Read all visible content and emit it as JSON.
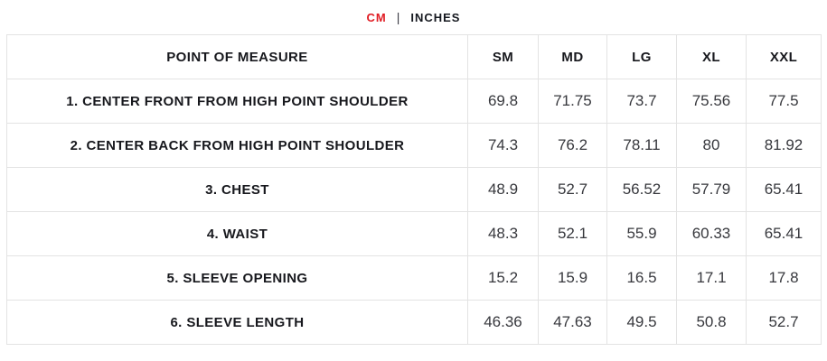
{
  "unit_toggle": {
    "cm_label": "CM",
    "separator": "|",
    "inches_label": "INCHES",
    "active_unit": "CM",
    "active_color": "#e01b22"
  },
  "table": {
    "headers": [
      "POINT OF MEASURE",
      "SM",
      "MD",
      "LG",
      "XL",
      "XXL"
    ],
    "rows": [
      {
        "label": "1. CENTER FRONT FROM HIGH POINT SHOULDER",
        "values": [
          "69.8",
          "71.75",
          "73.7",
          "75.56",
          "77.5"
        ]
      },
      {
        "label": "2. CENTER BACK FROM HIGH POINT SHOULDER",
        "values": [
          "74.3",
          "76.2",
          "78.11",
          "80",
          "81.92"
        ]
      },
      {
        "label": "3. CHEST",
        "values": [
          "48.9",
          "52.7",
          "56.52",
          "57.79",
          "65.41"
        ]
      },
      {
        "label": "4. WAIST",
        "values": [
          "48.3",
          "52.1",
          "55.9",
          "60.33",
          "65.41"
        ]
      },
      {
        "label": "5. SLEEVE OPENING",
        "values": [
          "15.2",
          "15.9",
          "16.5",
          "17.1",
          "17.8"
        ]
      },
      {
        "label": "6. SLEEVE LENGTH",
        "values": [
          "46.36",
          "47.63",
          "49.5",
          "50.8",
          "52.7"
        ]
      }
    ]
  }
}
